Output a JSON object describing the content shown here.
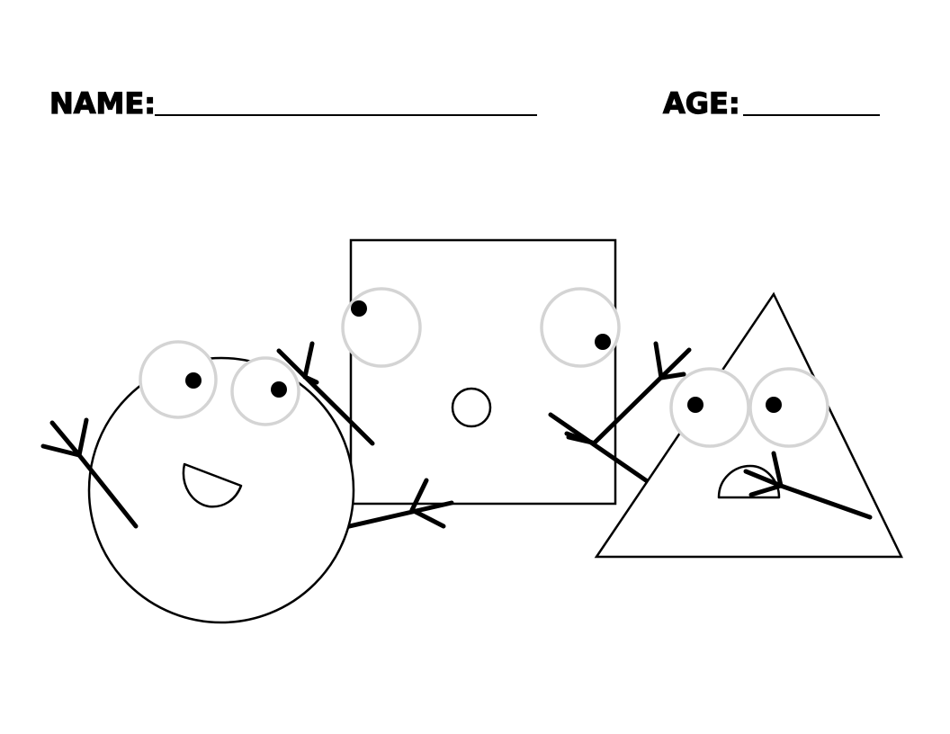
{
  "worksheet": {
    "name_label": "NAME:",
    "age_label": "AGE:"
  },
  "colors": {
    "ink": "#000000",
    "eye_outline": "#d4d4d4",
    "paper": "#ffffff"
  }
}
